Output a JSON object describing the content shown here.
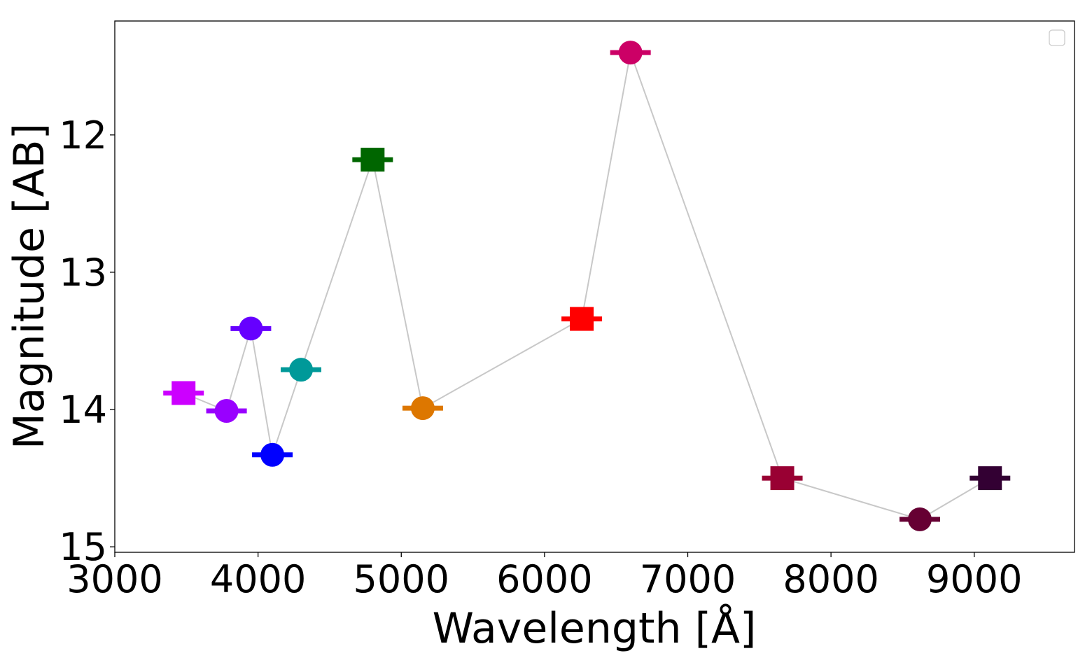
{
  "chart_data": {
    "type": "scatter",
    "xlabel": "Wavelength [Å]",
    "ylabel": "Magnitude [AB]",
    "xlim": [
      3000,
      9700
    ],
    "ylim": [
      15.04,
      11.17
    ],
    "y_inverted": true,
    "xticks": [
      3000,
      4000,
      5000,
      6000,
      7000,
      8000,
      9000
    ],
    "yticks": [
      12,
      13,
      14,
      15
    ],
    "grid": false,
    "legend": "top-right (empty)",
    "connector_color": "#c8c8c8",
    "points": [
      {
        "x": 3480,
        "y": 13.88,
        "marker": "square",
        "color": "#cc00ff"
      },
      {
        "x": 3780,
        "y": 14.01,
        "marker": "circle",
        "color": "#9900ff"
      },
      {
        "x": 3950,
        "y": 13.41,
        "marker": "circle",
        "color": "#6600ff"
      },
      {
        "x": 4100,
        "y": 14.33,
        "marker": "circle",
        "color": "#0000ff"
      },
      {
        "x": 4300,
        "y": 13.71,
        "marker": "circle",
        "color": "#009999"
      },
      {
        "x": 4800,
        "y": 12.18,
        "marker": "square",
        "color": "#006600"
      },
      {
        "x": 5150,
        "y": 13.99,
        "marker": "circle",
        "color": "#dd7700"
      },
      {
        "x": 6260,
        "y": 13.34,
        "marker": "square",
        "color": "#ff0000"
      },
      {
        "x": 6600,
        "y": 11.4,
        "marker": "circle",
        "color": "#cc0066"
      },
      {
        "x": 7660,
        "y": 14.5,
        "marker": "square",
        "color": "#990033"
      },
      {
        "x": 8620,
        "y": 14.8,
        "marker": "circle",
        "color": "#660033"
      },
      {
        "x": 9110,
        "y": 14.5,
        "marker": "square",
        "color": "#330033"
      }
    ]
  }
}
